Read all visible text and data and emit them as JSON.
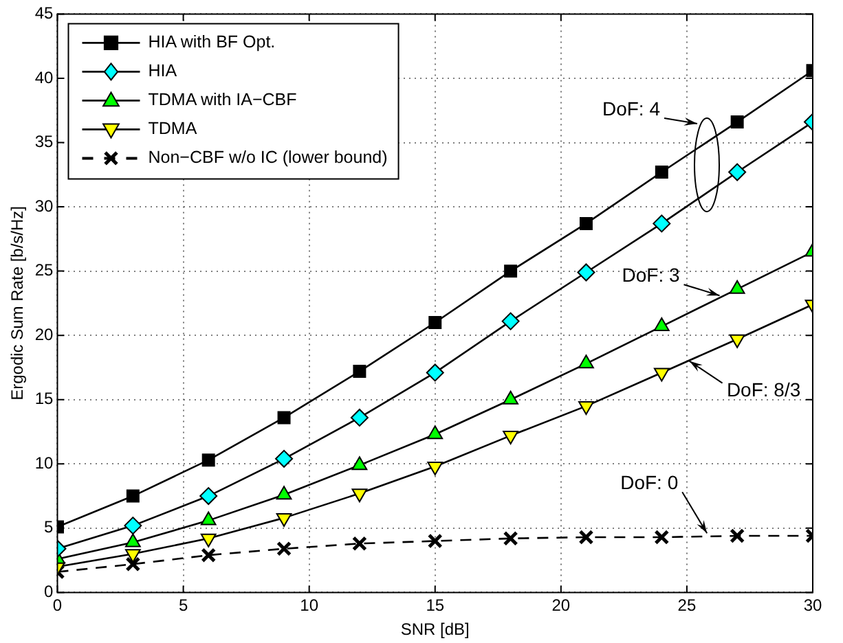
{
  "chart_data": {
    "type": "line",
    "xlabel": "SNR [dB]",
    "ylabel": "Ergodic Sum Rate [b/s/Hz]",
    "x": [
      0,
      3,
      6,
      9,
      12,
      15,
      18,
      21,
      24,
      27,
      30
    ],
    "series": [
      {
        "name": "HIA with BF Opt.",
        "color": "#000000",
        "marker": "square",
        "line_style": "solid",
        "values": [
          5.1,
          7.5,
          10.3,
          13.6,
          17.2,
          21.0,
          25.0,
          28.7,
          32.7,
          36.6,
          40.6
        ]
      },
      {
        "name": "HIA",
        "color": "#00ffff",
        "marker": "diamond",
        "line_style": "solid",
        "values": [
          3.4,
          5.2,
          7.5,
          10.4,
          13.6,
          17.1,
          21.1,
          24.9,
          28.7,
          32.7,
          36.6
        ]
      },
      {
        "name": "TDMA with IA−CBF",
        "color": "#00ff00",
        "marker": "triangle",
        "line_style": "solid",
        "values": [
          2.6,
          3.9,
          5.6,
          7.6,
          9.9,
          12.3,
          15.0,
          17.8,
          20.7,
          23.6,
          26.5
        ]
      },
      {
        "name": "TDMA",
        "color": "#ffff00",
        "marker": "triangle-down",
        "line_style": "solid",
        "values": [
          2.0,
          3.0,
          4.2,
          5.8,
          7.7,
          9.8,
          12.2,
          14.5,
          17.1,
          19.7,
          22.4
        ]
      },
      {
        "name": "Non−CBF w/o IC (lower bound)",
        "color": "#000000",
        "marker": "cross",
        "line_style": "dashed",
        "values": [
          1.6,
          2.2,
          2.9,
          3.4,
          3.8,
          4.0,
          4.2,
          4.3,
          4.3,
          4.4,
          4.4
        ]
      }
    ],
    "xlim": [
      0,
      30
    ],
    "xticks": [
      0,
      5,
      10,
      15,
      20,
      25,
      30
    ],
    "ylim": [
      0,
      45
    ],
    "yticks": [
      0,
      5,
      10,
      15,
      20,
      25,
      30,
      35,
      40,
      45
    ],
    "grid": true,
    "legend": "top left",
    "annotations": [
      "DoF: 4",
      {
        "text": "DoF: 3",
        "x": 26.3,
        "y": 23.1
      },
      {
        "text": "DoF: 8/3",
        "x": 25.1,
        "y": 18.0
      },
      {
        "text": "DoF: 0",
        "x": 25.8,
        "y": 4.6
      }
    ]
  }
}
